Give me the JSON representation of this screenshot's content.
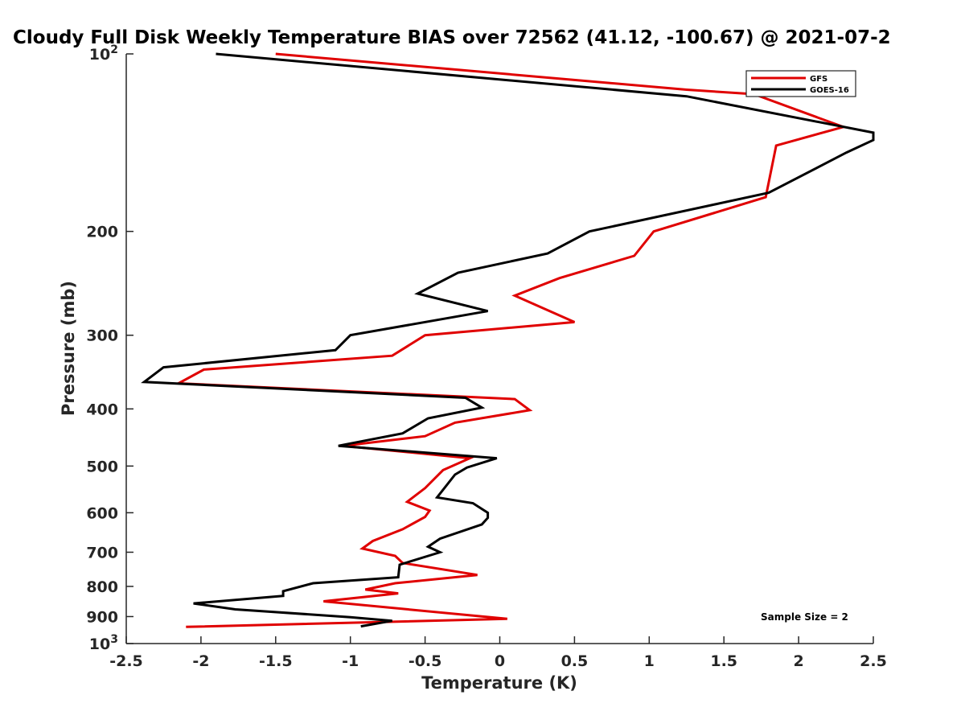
{
  "chart_data": {
    "type": "line",
    "title": "Cloudy Full Disk Weekly Temperature BIAS over 72562 (41.12, -100.67) @ 2021-07-2",
    "xlabel": "Temperature (K)",
    "ylabel": "Pressure (mb)",
    "xlim": [
      -2.5,
      2.5
    ],
    "ylim": [
      100,
      1000
    ],
    "yscale": "log",
    "y_reversed": true,
    "xticks": [
      "-2.5",
      "-2",
      "-1.5",
      "-1",
      "-0.5",
      "0",
      "0.5",
      "1",
      "1.5",
      "2",
      "2.5"
    ],
    "yticks": [
      {
        "value": 100,
        "base": "10",
        "exp": "2"
      },
      {
        "value": 200,
        "label": "200"
      },
      {
        "value": 300,
        "label": "300"
      },
      {
        "value": 400,
        "label": "400"
      },
      {
        "value": 500,
        "label": "500"
      },
      {
        "value": 600,
        "label": "600"
      },
      {
        "value": 700,
        "label": "700"
      },
      {
        "value": 800,
        "label": "800"
      },
      {
        "value": 900,
        "label": "900"
      },
      {
        "value": 1000,
        "base": "10",
        "exp": "3"
      }
    ],
    "grid": false,
    "legend_position": "top-right",
    "annotation": "Sample Size = 2",
    "series": [
      {
        "name": "GFS",
        "color": "#e00000",
        "points": [
          [
            -1.5,
            100
          ],
          [
            1.25,
            115
          ],
          [
            1.7,
            117
          ],
          [
            2.3,
            133
          ],
          [
            1.85,
            143
          ],
          [
            1.78,
            175
          ],
          [
            1.03,
            200
          ],
          [
            0.9,
            220
          ],
          [
            0.4,
            240
          ],
          [
            0.1,
            257
          ],
          [
            0.5,
            285
          ],
          [
            -0.5,
            300
          ],
          [
            -0.72,
            325
          ],
          [
            -1.98,
            343
          ],
          [
            -2.15,
            362
          ],
          [
            0.1,
            385
          ],
          [
            0.2,
            402
          ],
          [
            -0.3,
            422
          ],
          [
            -0.5,
            445
          ],
          [
            -1.05,
            462
          ],
          [
            -0.2,
            485
          ],
          [
            -0.38,
            508
          ],
          [
            -0.5,
            545
          ],
          [
            -0.62,
            575
          ],
          [
            -0.47,
            595
          ],
          [
            -0.5,
            610
          ],
          [
            -0.65,
            640
          ],
          [
            -0.85,
            670
          ],
          [
            -0.92,
            690
          ],
          [
            -0.7,
            710
          ],
          [
            -0.65,
            730
          ],
          [
            -0.15,
            765
          ],
          [
            -0.7,
            790
          ],
          [
            -0.9,
            810
          ],
          [
            -0.68,
            822
          ],
          [
            -1.18,
            848
          ],
          [
            0.05,
            908
          ],
          [
            -2.1,
            937
          ]
        ]
      },
      {
        "name": "GOES-16",
        "color": "#000000",
        "points": [
          [
            -1.9,
            100
          ],
          [
            1.25,
            118
          ],
          [
            2.5,
            136
          ],
          [
            2.5,
            140
          ],
          [
            2.32,
            147
          ],
          [
            1.8,
            172
          ],
          [
            0.6,
            200
          ],
          [
            0.32,
            218
          ],
          [
            -0.28,
            235
          ],
          [
            -0.55,
            255
          ],
          [
            -0.08,
            273
          ],
          [
            -1.0,
            300
          ],
          [
            -1.1,
            318
          ],
          [
            -2.25,
            340
          ],
          [
            -2.38,
            360
          ],
          [
            -0.23,
            383
          ],
          [
            -0.12,
            398
          ],
          [
            -0.48,
            415
          ],
          [
            -0.65,
            440
          ],
          [
            -1.08,
            462
          ],
          [
            -0.02,
            485
          ],
          [
            -0.22,
            503
          ],
          [
            -0.3,
            517
          ],
          [
            -0.42,
            565
          ],
          [
            -0.18,
            578
          ],
          [
            -0.08,
            600
          ],
          [
            -0.08,
            612
          ],
          [
            -0.12,
            628
          ],
          [
            -0.4,
            664
          ],
          [
            -0.48,
            685
          ],
          [
            -0.4,
            700
          ],
          [
            -0.67,
            735
          ],
          [
            -0.68,
            772
          ],
          [
            -1.25,
            790
          ],
          [
            -1.45,
            815
          ],
          [
            -1.45,
            830
          ],
          [
            -2.05,
            855
          ],
          [
            -1.77,
            875
          ],
          [
            -1.0,
            902
          ],
          [
            -0.72,
            915
          ],
          [
            -0.93,
            935
          ]
        ]
      }
    ]
  }
}
